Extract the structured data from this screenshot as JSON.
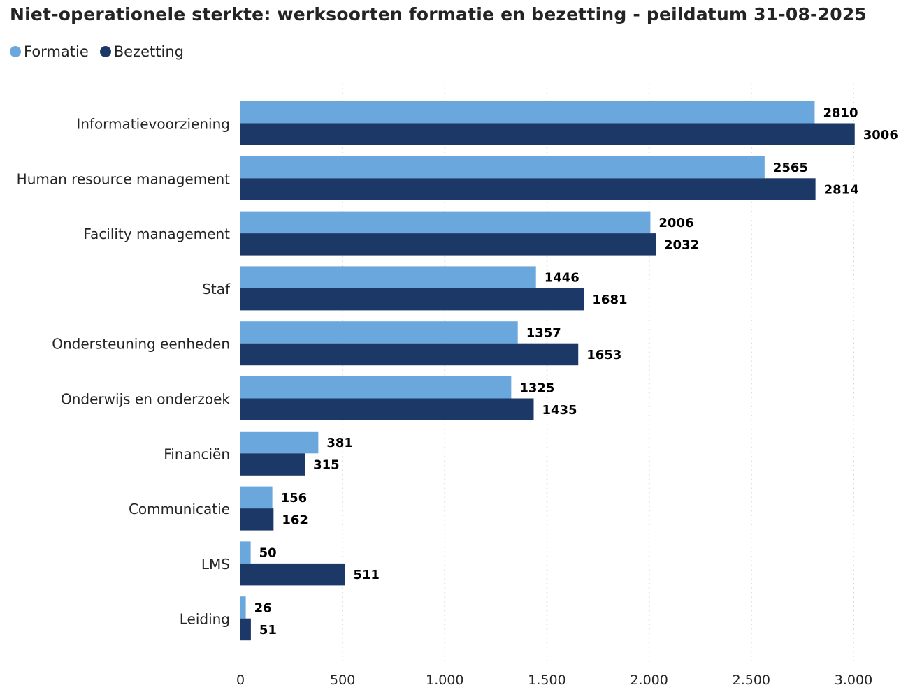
{
  "chart_data": {
    "type": "bar",
    "orientation": "horizontal",
    "title": "Niet-operationele sterkte: werksoorten formatie en bezetting - peildatum 31-08-2025",
    "categories": [
      "Informatievoorziening",
      "Human resource management",
      "Facility management",
      "Staf",
      "Ondersteuning eenheden",
      "Onderwijs en onderzoek",
      "Financiën",
      "Communicatie",
      "LMS",
      "Leiding"
    ],
    "series": [
      {
        "name": "Formatie",
        "color": "#6aa7dc",
        "values": [
          2810,
          2565,
          2006,
          1446,
          1357,
          1325,
          381,
          156,
          50,
          26
        ]
      },
      {
        "name": "Bezetting",
        "color": "#1b3867",
        "values": [
          3006,
          2814,
          2032,
          1681,
          1653,
          1435,
          315,
          162,
          511,
          51
        ]
      }
    ],
    "xlim": [
      0,
      3000
    ],
    "xticks": [
      0,
      500,
      1000,
      1500,
      2000,
      2500,
      3000
    ],
    "xtick_labels": [
      "0",
      "500",
      "1.000",
      "1.500",
      "2.000",
      "2.500",
      "3.000"
    ],
    "grid": true,
    "legend_position": "top-left",
    "xlabel": "",
    "ylabel": ""
  }
}
